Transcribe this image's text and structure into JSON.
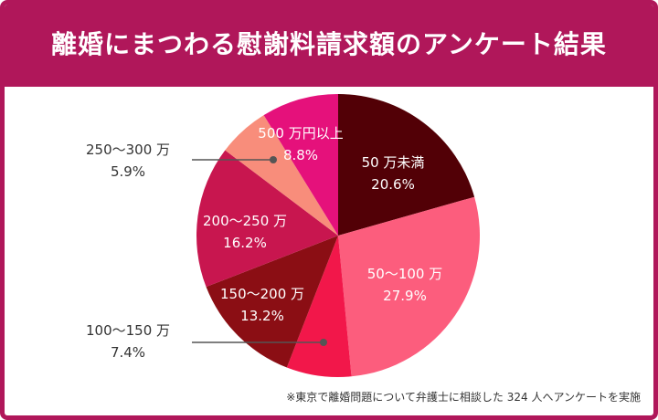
{
  "chart_data": {
    "type": "pie",
    "title": "離婚にまつわる慰謝料請求額のアンケート結果",
    "start": "top, clockwise",
    "slices": [
      {
        "label": "50 万未満",
        "pct_text": "20.6%",
        "value": 20.6,
        "color": "#520006"
      },
      {
        "label": "50〜100 万",
        "pct_text": "27.9%",
        "value": 27.9,
        "color": "#fc5d7d"
      },
      {
        "label": "100〜150 万",
        "pct_text": "7.4%",
        "value": 7.4,
        "color": "#f2174a"
      },
      {
        "label": "150〜200 万",
        "pct_text": "13.2%",
        "value": 13.2,
        "color": "#8b0e14"
      },
      {
        "label": "200〜250 万",
        "pct_text": "16.2%",
        "value": 16.2,
        "color": "#c8164f"
      },
      {
        "label": "250〜300 万",
        "pct_text": "5.9%",
        "value": 5.9,
        "color": "#f88d7b"
      },
      {
        "label": "500 万円以上",
        "pct_text": "8.8%",
        "value": 8.8,
        "color": "#e5117b"
      }
    ]
  },
  "footnote": "※東京で離婚問題について弁護士に相談した 324 人へアンケートを実施"
}
